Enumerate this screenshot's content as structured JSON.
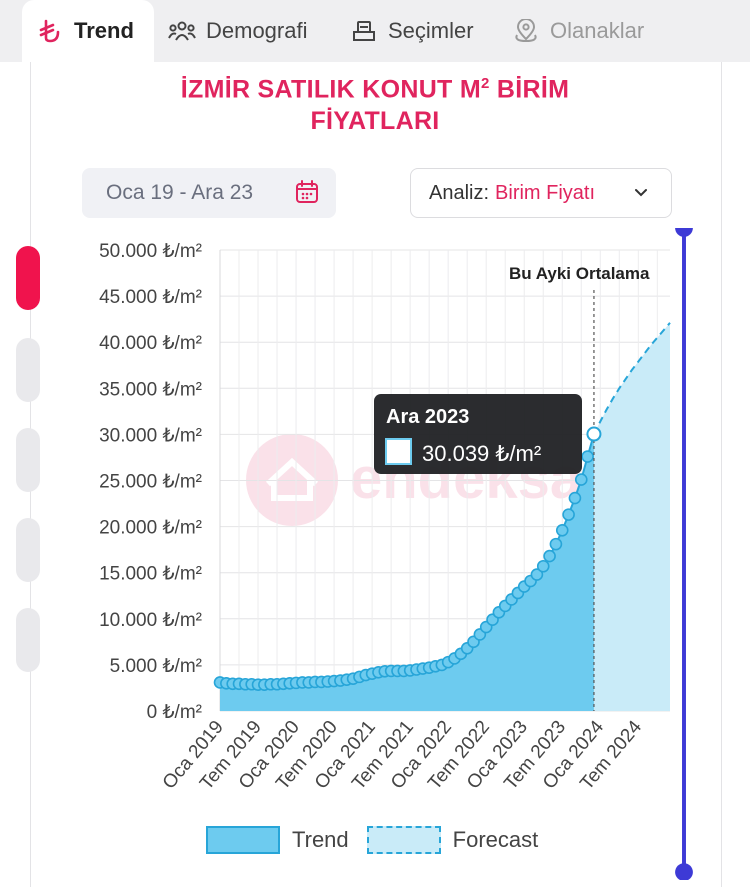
{
  "tabs": [
    {
      "label": "Trend",
      "icon": "lira-icon"
    },
    {
      "label": "Demografi",
      "icon": "people-icon"
    },
    {
      "label": "Seçimler",
      "icon": "ballot-icon"
    },
    {
      "label": "Olanaklar",
      "icon": "location-icon"
    }
  ],
  "title": {
    "line1_a": "İZMİR SATILIK KONUT M",
    "line1_sup": "2",
    "line1_b": " BİRİM",
    "line2": "FİYATLARI"
  },
  "date_range": {
    "label": "Oca 19 - Ara 23",
    "icon": "calendar-icon"
  },
  "analysis": {
    "prefix": "Analiz:",
    "value": "Birim Fiyatı",
    "icon": "chevron-down-icon"
  },
  "tooltip": {
    "title": "Ara 2023",
    "value": "30.039 ₺/m²"
  },
  "legend": {
    "trend": "Trend",
    "forecast": "Forecast"
  },
  "watermark": "endeksa",
  "colors": {
    "accent": "#e0245e",
    "trend_fill": "#6dcbef",
    "trend_line": "#27a5d8",
    "forecast_fill": "#c9ebf8",
    "slider": "#3d3ad6"
  },
  "chart_data": {
    "type": "area",
    "ylabel_unit": "₺/m²",
    "ylim": [
      0,
      50000
    ],
    "y_ticks": [
      "0 ₺/m²",
      "5.000 ₺/m²",
      "10.000 ₺/m²",
      "15.000 ₺/m²",
      "20.000 ₺/m²",
      "25.000 ₺/m²",
      "30.000 ₺/m²",
      "35.000 ₺/m²",
      "40.000 ₺/m²",
      "45.000 ₺/m²",
      "50.000 ₺/m²"
    ],
    "x_ticks": [
      "Oca 2019",
      "Tem 2019",
      "Oca 2020",
      "Tem 2020",
      "Oca 2021",
      "Tem 2021",
      "Oca 2022",
      "Tem 2022",
      "Oca 2023",
      "Tem 2023",
      "Oca 2024",
      "Tem 2024"
    ],
    "marker_label": "Bu Ayki Ortalama",
    "marker_date": "Ara 2023",
    "grid": true,
    "series": [
      {
        "name": "Trend",
        "x": [
          "Oca 2019",
          "Şub 2019",
          "Mar 2019",
          "Nis 2019",
          "May 2019",
          "Haz 2019",
          "Tem 2019",
          "Ağu 2019",
          "Eyl 2019",
          "Eki 2019",
          "Kas 2019",
          "Ara 2019",
          "Oca 2020",
          "Şub 2020",
          "Mar 2020",
          "Nis 2020",
          "May 2020",
          "Haz 2020",
          "Tem 2020",
          "Ağu 2020",
          "Eyl 2020",
          "Eki 2020",
          "Kas 2020",
          "Ara 2020",
          "Oca 2021",
          "Şub 2021",
          "Mar 2021",
          "Nis 2021",
          "May 2021",
          "Haz 2021",
          "Tem 2021",
          "Ağu 2021",
          "Eyl 2021",
          "Eki 2021",
          "Kas 2021",
          "Ara 2021",
          "Oca 2022",
          "Şub 2022",
          "Mar 2022",
          "Nis 2022",
          "May 2022",
          "Haz 2022",
          "Tem 2022",
          "Ağu 2022",
          "Eyl 2022",
          "Eki 2022",
          "Kas 2022",
          "Ara 2022",
          "Oca 2023",
          "Şub 2023",
          "Mar 2023",
          "Nis 2023",
          "May 2023",
          "Haz 2023",
          "Tem 2023",
          "Ağu 2023",
          "Eyl 2023",
          "Eki 2023",
          "Kas 2023",
          "Ara 2023"
        ],
        "values": [
          3100,
          3000,
          2950,
          2950,
          2900,
          2900,
          2850,
          2850,
          2900,
          2900,
          2950,
          3000,
          3050,
          3100,
          3100,
          3150,
          3150,
          3200,
          3250,
          3300,
          3400,
          3500,
          3700,
          3900,
          4050,
          4200,
          4300,
          4350,
          4350,
          4350,
          4400,
          4500,
          4600,
          4700,
          4850,
          5000,
          5300,
          5700,
          6200,
          6800,
          7500,
          8300,
          9100,
          9900,
          10700,
          11400,
          12100,
          12800,
          13500,
          14100,
          14800,
          15700,
          16800,
          18100,
          19600,
          21300,
          23100,
          25100,
          27600,
          30039
        ]
      },
      {
        "name": "Forecast",
        "x": [
          "Ara 2023",
          "Oca 2024",
          "Şub 2024",
          "Mar 2024",
          "Nis 2024",
          "May 2024",
          "Haz 2024",
          "Tem 2024",
          "Ağu 2024",
          "Eyl 2024",
          "Eki 2024",
          "Kas 2024",
          "Ara 2024"
        ],
        "values": [
          30039,
          31400,
          32700,
          33900,
          35000,
          36000,
          37000,
          37900,
          38800,
          39700,
          40500,
          41300,
          42100
        ]
      }
    ]
  }
}
